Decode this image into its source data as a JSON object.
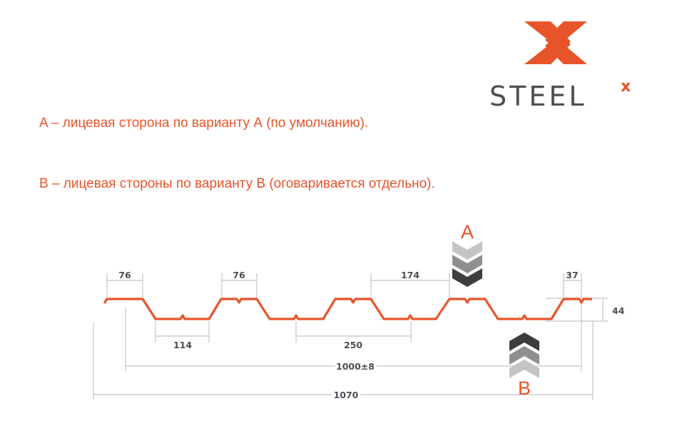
{
  "logo": {
    "text": "STEEL",
    "superscript": "X",
    "colors": {
      "orange": "#e8542a",
      "gray": "#4a4f55"
    }
  },
  "captions": {
    "a": "A – лицевая сторона по варианту А (по умолчанию).",
    "b": "B – лицевая стороны по варианту В (оговаривается отдельно)."
  },
  "diagram": {
    "side_a_label": "A",
    "side_b_label": "B",
    "dimensions": {
      "top_width_1": "76",
      "top_width_2": "76",
      "bottom_width": "114",
      "top_gap": "174",
      "pitch": "250",
      "edge_width": "37",
      "height": "44",
      "working_width": "1000±8",
      "total_width": "1070"
    },
    "profile_color": "#e8542a"
  }
}
